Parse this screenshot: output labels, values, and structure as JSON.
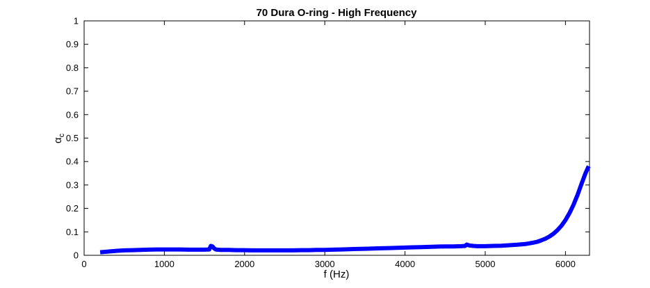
{
  "chart_data": {
    "type": "line",
    "title": "70 Dura O-ring - High Frequency",
    "xlabel": "f (Hz)",
    "ylabel": "α",
    "ylabel_sub": "c",
    "xlim": [
      0,
      6300
    ],
    "ylim": [
      0,
      1
    ],
    "xticks": [
      0,
      1000,
      2000,
      3000,
      4000,
      5000,
      6000
    ],
    "yticks": [
      0,
      0.1,
      0.2,
      0.3,
      0.4,
      0.5,
      0.6,
      0.7,
      0.8,
      0.9,
      1
    ],
    "grid": false,
    "series": [
      {
        "color": "#0000ff",
        "x": [
          200,
          300,
          400,
          500,
          600,
          700,
          800,
          900,
          1000,
          1100,
          1200,
          1300,
          1400,
          1500,
          1560,
          1580,
          1600,
          1620,
          1640,
          1700,
          1800,
          1900,
          2000,
          2100,
          2200,
          2300,
          2400,
          2500,
          2600,
          2700,
          2800,
          2900,
          3000,
          3100,
          3200,
          3300,
          3400,
          3500,
          3600,
          3700,
          3800,
          3900,
          4000,
          4100,
          4200,
          4300,
          4400,
          4500,
          4600,
          4700,
          4750,
          4770,
          4800,
          4850,
          4900,
          5000,
          5100,
          5200,
          5300,
          5400,
          5500,
          5550,
          5600,
          5650,
          5700,
          5750,
          5800,
          5850,
          5900,
          5950,
          6000,
          6050,
          6100,
          6150,
          6200,
          6250,
          6290
        ],
        "values": [
          0.013,
          0.016,
          0.019,
          0.021,
          0.022,
          0.023,
          0.024,
          0.025,
          0.025,
          0.025,
          0.025,
          0.024,
          0.024,
          0.024,
          0.025,
          0.04,
          0.038,
          0.03,
          0.025,
          0.023,
          0.023,
          0.022,
          0.022,
          0.021,
          0.021,
          0.021,
          0.021,
          0.021,
          0.021,
          0.022,
          0.022,
          0.023,
          0.023,
          0.024,
          0.025,
          0.026,
          0.027,
          0.028,
          0.029,
          0.03,
          0.031,
          0.032,
          0.033,
          0.034,
          0.035,
          0.036,
          0.037,
          0.038,
          0.038,
          0.039,
          0.04,
          0.046,
          0.042,
          0.04,
          0.039,
          0.039,
          0.04,
          0.041,
          0.043,
          0.045,
          0.048,
          0.051,
          0.054,
          0.058,
          0.064,
          0.071,
          0.08,
          0.092,
          0.107,
          0.126,
          0.15,
          0.18,
          0.215,
          0.257,
          0.305,
          0.35,
          0.38
        ]
      }
    ]
  }
}
